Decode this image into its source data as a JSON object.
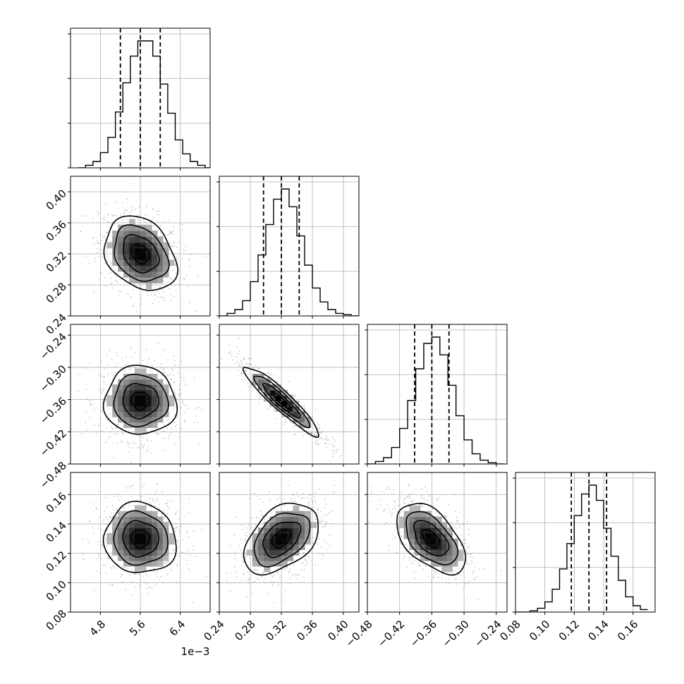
{
  "chart_data": {
    "type": "corner",
    "parameters": [
      {
        "range": [
          4.2,
          7.0
        ],
        "ticks": [
          4.8,
          5.6,
          6.4
        ],
        "tick_labels": [
          "4.8",
          "5.6",
          "6.4"
        ],
        "offset_text": "1e−3",
        "quantiles": [
          5.2,
          5.6,
          6.0
        ],
        "peak": 5.6,
        "sigma": 0.36,
        "hist_bins": [
          4.35,
          4.5,
          4.65,
          4.8,
          4.95,
          5.1,
          5.25,
          5.4,
          5.55,
          5.7,
          5.85,
          6.0,
          6.15,
          6.3,
          6.45,
          6.6,
          6.75,
          6.9
        ],
        "hist_counts": [
          0,
          0.02,
          0.05,
          0.12,
          0.24,
          0.44,
          0.67,
          0.88,
          1.0,
          1.0,
          0.88,
          0.66,
          0.43,
          0.22,
          0.11,
          0.05,
          0.02,
          0.0
        ]
      },
      {
        "range": [
          0.24,
          0.42
        ],
        "ticks": [
          0.24,
          0.28,
          0.32,
          0.36,
          0.4
        ],
        "tick_labels": [
          "0.24",
          "0.28",
          "0.32",
          "0.36",
          "0.40"
        ],
        "quantiles": [
          0.297,
          0.32,
          0.343
        ],
        "peak": 0.32,
        "sigma": 0.024,
        "hist_bins": [
          0.24,
          0.25,
          0.26,
          0.27,
          0.28,
          0.29,
          0.3,
          0.31,
          0.32,
          0.33,
          0.34,
          0.35,
          0.36,
          0.37,
          0.38,
          0.39,
          0.4,
          0.41,
          0.42
        ],
        "hist_counts": [
          0,
          0.02,
          0.05,
          0.12,
          0.27,
          0.48,
          0.72,
          0.92,
          1.0,
          0.86,
          0.63,
          0.4,
          0.22,
          0.11,
          0.05,
          0.02,
          0.01,
          0.0
        ]
      },
      {
        "range": [
          -0.48,
          -0.22
        ],
        "ticks": [
          -0.48,
          -0.42,
          -0.36,
          -0.3,
          -0.24
        ],
        "tick_labels": [
          "−0.48",
          "−0.42",
          "−0.36",
          "−0.30",
          "−0.24"
        ],
        "quantiles": [
          -0.392,
          -0.36,
          -0.328
        ],
        "peak": -0.362,
        "sigma": 0.032,
        "hist_bins": [
          -0.48,
          -0.465,
          -0.45,
          -0.435,
          -0.42,
          -0.405,
          -0.39,
          -0.375,
          -0.36,
          -0.345,
          -0.33,
          -0.315,
          -0.3,
          -0.285,
          -0.27,
          -0.255,
          -0.24,
          -0.225
        ],
        "hist_counts": [
          0,
          0.02,
          0.05,
          0.13,
          0.28,
          0.5,
          0.75,
          0.95,
          1.0,
          0.86,
          0.62,
          0.38,
          0.19,
          0.08,
          0.03,
          0.01,
          0.0
        ]
      },
      {
        "range": [
          0.08,
          0.175
        ],
        "ticks": [
          0.08,
          0.1,
          0.12,
          0.14,
          0.16
        ],
        "tick_labels": [
          "0.08",
          "0.10",
          "0.12",
          "0.14",
          "0.16"
        ],
        "quantiles": [
          0.118,
          0.13,
          0.142
        ],
        "peak": 0.13,
        "sigma": 0.012,
        "hist_bins": [
          0.08,
          0.085,
          0.09,
          0.095,
          0.1,
          0.105,
          0.11,
          0.115,
          0.12,
          0.125,
          0.13,
          0.135,
          0.14,
          0.145,
          0.15,
          0.155,
          0.16,
          0.165,
          0.17
        ],
        "hist_counts": [
          0,
          0.0,
          0.01,
          0.03,
          0.08,
          0.18,
          0.34,
          0.54,
          0.76,
          0.93,
          1.0,
          0.88,
          0.66,
          0.44,
          0.25,
          0.12,
          0.05,
          0.02
        ]
      }
    ],
    "correlations": [
      [
        1,
        -0.28,
        -0.02,
        -0.05
      ],
      [
        -0.28,
        1,
        -0.93,
        0.42
      ],
      [
        -0.02,
        -0.93,
        1,
        -0.52
      ],
      [
        -0.05,
        0.42,
        -0.52,
        1
      ]
    ],
    "contour_levels_sigma": [
      0.5,
      1.0,
      1.5,
      2.0
    ],
    "grid": true,
    "quantile_line_style": "dashed",
    "hist_y_ticks": [
      0.0,
      0.333,
      0.667,
      1.0
    ]
  }
}
